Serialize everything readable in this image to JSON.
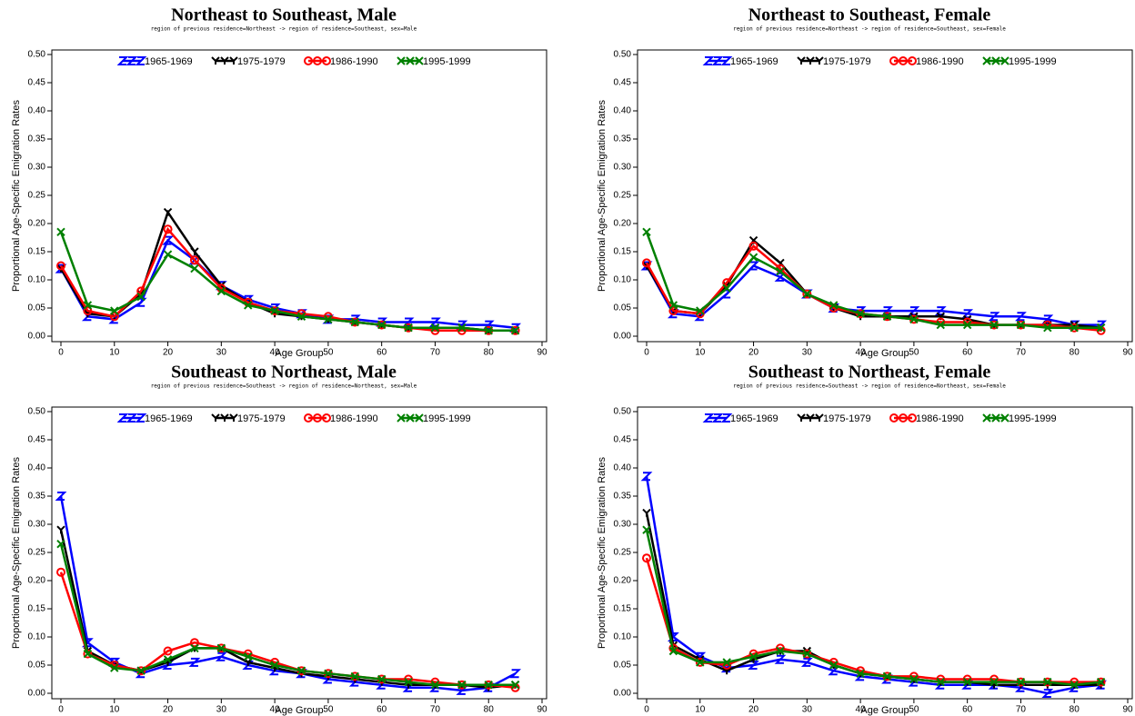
{
  "chart_data": [
    {
      "type": "line",
      "title": "Northeast to Southeast, Male",
      "subtitle": "region of previous residence=Northeast -> region of residence=Southeast, sex=Male",
      "x_label": "Age Group",
      "y_label": "Proportional Age-Specific Emigration Rates",
      "x": [
        0,
        5,
        10,
        15,
        20,
        25,
        30,
        35,
        40,
        45,
        50,
        55,
        60,
        65,
        70,
        75,
        80,
        85
      ],
      "xlim": [
        0,
        90
      ],
      "xticks": [
        0,
        10,
        20,
        30,
        40,
        50,
        60,
        70,
        80,
        90
      ],
      "ylim": [
        0,
        0.5
      ],
      "yticks": [
        {
          "value": 0,
          "label": "0.00"
        },
        {
          "value": 0.05,
          "label": "0.05"
        },
        {
          "value": 0.1,
          "label": "0.10"
        },
        {
          "value": 0.15,
          "label": "0.15"
        },
        {
          "value": 0.2,
          "label": "0.20"
        },
        {
          "value": 0.25,
          "label": "0.25"
        },
        {
          "value": 0.3,
          "label": "0.30"
        },
        {
          "value": 0.35,
          "label": "0.35"
        },
        {
          "value": 0.4,
          "label": "0.40"
        },
        {
          "value": 0.45,
          "label": "0.45"
        },
        {
          "value": 0.5,
          "label": "0.50"
        }
      ],
      "legend": "top",
      "series": [
        {
          "name": "1965-1969",
          "color": "#0000ff",
          "marker": "bowtie",
          "values": [
            0.12,
            0.035,
            0.03,
            0.06,
            0.17,
            0.135,
            0.09,
            0.065,
            0.05,
            0.04,
            0.03,
            0.03,
            0.025,
            0.025,
            0.025,
            0.02,
            0.02,
            0.015
          ]
        },
        {
          "name": "1975-1979",
          "color": "#000000",
          "marker": "y",
          "values": [
            0.12,
            0.04,
            0.035,
            0.075,
            0.22,
            0.15,
            0.09,
            0.06,
            0.04,
            0.035,
            0.03,
            0.025,
            0.02,
            0.015,
            0.015,
            0.015,
            0.01,
            0.01
          ]
        },
        {
          "name": "1986-1990",
          "color": "#ff0000",
          "marker": "circle",
          "values": [
            0.125,
            0.045,
            0.035,
            0.08,
            0.19,
            0.135,
            0.085,
            0.06,
            0.045,
            0.04,
            0.035,
            0.025,
            0.02,
            0.015,
            0.01,
            0.01,
            0.01,
            0.01
          ]
        },
        {
          "name": "1995-1999",
          "color": "#008000",
          "marker": "x",
          "values": [
            0.185,
            0.055,
            0.045,
            0.07,
            0.145,
            0.12,
            0.08,
            0.055,
            0.045,
            0.035,
            0.03,
            0.025,
            0.02,
            0.015,
            0.015,
            0.015,
            0.01,
            0.01
          ]
        }
      ]
    },
    {
      "type": "line",
      "title": "Northeast to Southeast, Female",
      "subtitle": "region of previous residence=Northeast -> region of residence=Southeast, sex=Female",
      "x_label": "Age Group",
      "y_label": "Proportional Age-Specific Emigration Rates",
      "x": [
        0,
        5,
        10,
        15,
        20,
        25,
        30,
        35,
        40,
        45,
        50,
        55,
        60,
        65,
        70,
        75,
        80,
        85
      ],
      "xlim": [
        0,
        90
      ],
      "xticks": [
        0,
        10,
        20,
        30,
        40,
        50,
        60,
        70,
        80,
        90
      ],
      "ylim": [
        0,
        0.5
      ],
      "yticks": [
        {
          "value": 0,
          "label": "0.00"
        },
        {
          "value": 0.05,
          "label": "0.05"
        },
        {
          "value": 0.1,
          "label": "0.10"
        },
        {
          "value": 0.15,
          "label": "0.15"
        },
        {
          "value": 0.2,
          "label": "0.20"
        },
        {
          "value": 0.25,
          "label": "0.25"
        },
        {
          "value": 0.3,
          "label": "0.30"
        },
        {
          "value": 0.35,
          "label": "0.35"
        },
        {
          "value": 0.4,
          "label": "0.40"
        },
        {
          "value": 0.45,
          "label": "0.45"
        },
        {
          "value": 0.5,
          "label": "0.50"
        }
      ],
      "legend": "top",
      "series": [
        {
          "name": "1965-1969",
          "color": "#0000ff",
          "marker": "bowtie",
          "values": [
            0.125,
            0.04,
            0.035,
            0.075,
            0.125,
            0.105,
            0.075,
            0.05,
            0.045,
            0.045,
            0.045,
            0.045,
            0.04,
            0.035,
            0.035,
            0.03,
            0.02,
            0.02
          ]
        },
        {
          "name": "1975-1979",
          "color": "#000000",
          "marker": "y",
          "values": [
            0.125,
            0.045,
            0.04,
            0.09,
            0.17,
            0.13,
            0.075,
            0.05,
            0.035,
            0.035,
            0.035,
            0.035,
            0.03,
            0.02,
            0.02,
            0.02,
            0.02,
            0.015
          ]
        },
        {
          "name": "1986-1990",
          "color": "#ff0000",
          "marker": "circle",
          "values": [
            0.13,
            0.045,
            0.04,
            0.095,
            0.16,
            0.12,
            0.075,
            0.05,
            0.04,
            0.035,
            0.03,
            0.025,
            0.025,
            0.02,
            0.02,
            0.02,
            0.015,
            0.01
          ]
        },
        {
          "name": "1995-1999",
          "color": "#008000",
          "marker": "x",
          "values": [
            0.185,
            0.055,
            0.045,
            0.085,
            0.14,
            0.115,
            0.075,
            0.055,
            0.04,
            0.035,
            0.03,
            0.02,
            0.02,
            0.02,
            0.02,
            0.015,
            0.015,
            0.015
          ]
        }
      ]
    },
    {
      "type": "line",
      "title": "Southeast to Northeast, Male",
      "subtitle": "region of previous residence=Southeast -> region of residence=Northeast, sex=Male",
      "x_label": "Age Group",
      "y_label": "Proportional Age-Specific Emigration Rates",
      "x": [
        0,
        5,
        10,
        15,
        20,
        25,
        30,
        35,
        40,
        45,
        50,
        55,
        60,
        65,
        70,
        75,
        80,
        85
      ],
      "xlim": [
        0,
        90
      ],
      "xticks": [
        0,
        10,
        20,
        30,
        40,
        50,
        60,
        70,
        80,
        90
      ],
      "ylim": [
        0,
        0.5
      ],
      "yticks": [
        {
          "value": 0,
          "label": "0.00"
        },
        {
          "value": 0.05,
          "label": "0.05"
        },
        {
          "value": 0.1,
          "label": "0.10"
        },
        {
          "value": 0.15,
          "label": "0.15"
        },
        {
          "value": 0.2,
          "label": "0.20"
        },
        {
          "value": 0.25,
          "label": "0.25"
        },
        {
          "value": 0.3,
          "label": "0.30"
        },
        {
          "value": 0.35,
          "label": "0.35"
        },
        {
          "value": 0.4,
          "label": "0.40"
        },
        {
          "value": 0.45,
          "label": "0.45"
        },
        {
          "value": 0.5,
          "label": "0.50"
        }
      ],
      "legend": "top",
      "series": [
        {
          "name": "1965-1969",
          "color": "#0000ff",
          "marker": "bowtie",
          "values": [
            0.35,
            0.09,
            0.055,
            0.035,
            0.05,
            0.055,
            0.065,
            0.05,
            0.04,
            0.035,
            0.025,
            0.02,
            0.015,
            0.01,
            0.01,
            0.005,
            0.01,
            0.035
          ]
        },
        {
          "name": "1975-1979",
          "color": "#000000",
          "marker": "y",
          "values": [
            0.29,
            0.075,
            0.05,
            0.04,
            0.055,
            0.08,
            0.08,
            0.055,
            0.045,
            0.035,
            0.03,
            0.025,
            0.02,
            0.015,
            0.015,
            0.015,
            0.01,
            0.015
          ]
        },
        {
          "name": "1986-1990",
          "color": "#ff0000",
          "marker": "circle",
          "values": [
            0.215,
            0.07,
            0.05,
            0.04,
            0.075,
            0.09,
            0.08,
            0.07,
            0.055,
            0.04,
            0.035,
            0.03,
            0.025,
            0.025,
            0.02,
            0.015,
            0.015,
            0.01
          ]
        },
        {
          "name": "1995-1999",
          "color": "#008000",
          "marker": "x",
          "values": [
            0.265,
            0.07,
            0.045,
            0.04,
            0.06,
            0.08,
            0.08,
            0.065,
            0.05,
            0.04,
            0.035,
            0.03,
            0.025,
            0.02,
            0.015,
            0.015,
            0.015,
            0.015
          ]
        }
      ]
    },
    {
      "type": "line",
      "title": "Southeast to Northeast, Female",
      "subtitle": "region of previous residence=Southeast -> region of residence=Northeast, sex=Female",
      "x_label": "Age Group",
      "y_label": "Proportional Age-Specific Emigration Rates",
      "x": [
        0,
        5,
        10,
        15,
        20,
        25,
        30,
        35,
        40,
        45,
        50,
        55,
        60,
        65,
        70,
        75,
        80,
        85
      ],
      "xlim": [
        0,
        90
      ],
      "xticks": [
        0,
        10,
        20,
        30,
        40,
        50,
        60,
        70,
        80,
        90
      ],
      "ylim": [
        0,
        0.5
      ],
      "yticks": [
        {
          "value": 0,
          "label": "0.00"
        },
        {
          "value": 0.05,
          "label": "0.05"
        },
        {
          "value": 0.1,
          "label": "0.10"
        },
        {
          "value": 0.15,
          "label": "0.15"
        },
        {
          "value": 0.2,
          "label": "0.20"
        },
        {
          "value": 0.25,
          "label": "0.25"
        },
        {
          "value": 0.3,
          "label": "0.30"
        },
        {
          "value": 0.35,
          "label": "0.35"
        },
        {
          "value": 0.4,
          "label": "0.40"
        },
        {
          "value": 0.45,
          "label": "0.45"
        },
        {
          "value": 0.5,
          "label": "0.50"
        }
      ],
      "legend": "top",
      "series": [
        {
          "name": "1965-1969",
          "color": "#0000ff",
          "marker": "bowtie",
          "values": [
            0.385,
            0.1,
            0.065,
            0.045,
            0.05,
            0.06,
            0.055,
            0.04,
            0.03,
            0.025,
            0.02,
            0.015,
            0.015,
            0.015,
            0.01,
            0.0,
            0.01,
            0.015
          ]
        },
        {
          "name": "1975-1979",
          "color": "#000000",
          "marker": "y",
          "values": [
            0.32,
            0.085,
            0.06,
            0.04,
            0.06,
            0.075,
            0.075,
            0.05,
            0.035,
            0.03,
            0.025,
            0.02,
            0.02,
            0.015,
            0.015,
            0.015,
            0.015,
            0.015
          ]
        },
        {
          "name": "1986-1990",
          "color": "#ff0000",
          "marker": "circle",
          "values": [
            0.24,
            0.08,
            0.055,
            0.05,
            0.07,
            0.08,
            0.07,
            0.055,
            0.04,
            0.03,
            0.03,
            0.025,
            0.025,
            0.025,
            0.02,
            0.02,
            0.02,
            0.02
          ]
        },
        {
          "name": "1995-1999",
          "color": "#008000",
          "marker": "x",
          "values": [
            0.29,
            0.075,
            0.055,
            0.055,
            0.065,
            0.075,
            0.07,
            0.05,
            0.035,
            0.03,
            0.025,
            0.02,
            0.02,
            0.02,
            0.02,
            0.02,
            0.015,
            0.02
          ]
        }
      ]
    }
  ]
}
